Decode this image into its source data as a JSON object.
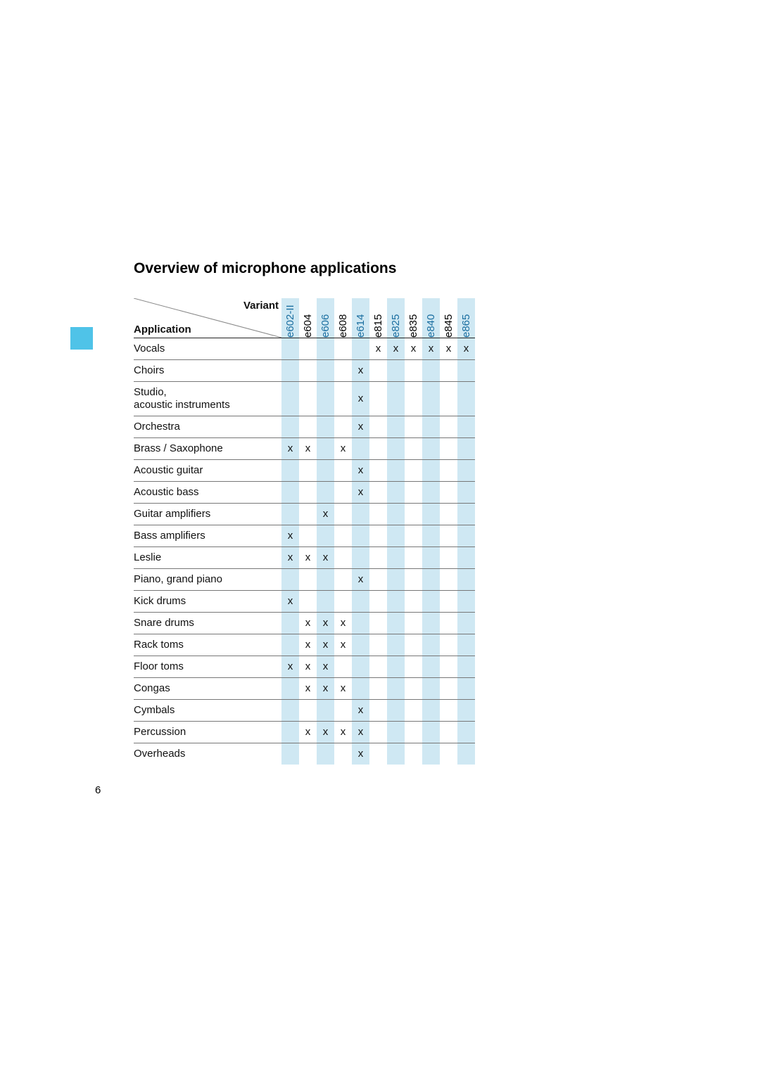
{
  "title": "Overview of microphone applications",
  "header": {
    "variant_label": "Variant",
    "application_label": "Application"
  },
  "columns": [
    "e602-II",
    "e604",
    "e606",
    "e608",
    "e614",
    "e815",
    "e825",
    "e835",
    "e840",
    "e845",
    "e865"
  ],
  "col_colors": [
    "#cfe8f3",
    "#ffffff",
    "#cfe8f3",
    "#ffffff",
    "#cfe8f3",
    "#ffffff",
    "#cfe8f3",
    "#ffffff",
    "#cfe8f3",
    "#ffffff",
    "#cfe8f3"
  ],
  "header_text_colors": [
    "#1a6ea0",
    "#000000",
    "#1a6ea0",
    "#000000",
    "#1a6ea0",
    "#000000",
    "#1a6ea0",
    "#000000",
    "#1a6ea0",
    "#000000",
    "#1a6ea0"
  ],
  "rows": [
    {
      "label": "Vocals",
      "marks": [
        "",
        "",
        "",
        "",
        "",
        "x",
        "x",
        "x",
        "x",
        "x",
        "x"
      ]
    },
    {
      "label": "Choirs",
      "marks": [
        "",
        "",
        "",
        "",
        "x",
        "",
        "",
        "",
        "",
        "",
        ""
      ]
    },
    {
      "label": "Studio,\nacoustic instruments",
      "marks": [
        "",
        "",
        "",
        "",
        "x",
        "",
        "",
        "",
        "",
        "",
        ""
      ]
    },
    {
      "label": "Orchestra",
      "marks": [
        "",
        "",
        "",
        "",
        "x",
        "",
        "",
        "",
        "",
        "",
        ""
      ]
    },
    {
      "label": "Brass / Saxophone",
      "marks": [
        "x",
        "x",
        "",
        "x",
        "",
        "",
        "",
        "",
        "",
        "",
        ""
      ]
    },
    {
      "label": "Acoustic guitar",
      "marks": [
        "",
        "",
        "",
        "",
        "x",
        "",
        "",
        "",
        "",
        "",
        ""
      ]
    },
    {
      "label": "Acoustic bass",
      "marks": [
        "",
        "",
        "",
        "",
        "x",
        "",
        "",
        "",
        "",
        "",
        ""
      ]
    },
    {
      "label": "Guitar amplifiers",
      "marks": [
        "",
        "",
        "x",
        "",
        "",
        "",
        "",
        "",
        "",
        "",
        ""
      ]
    },
    {
      "label": "Bass amplifiers",
      "marks": [
        "x",
        "",
        "",
        "",
        "",
        "",
        "",
        "",
        "",
        "",
        ""
      ]
    },
    {
      "label": "Leslie",
      "marks": [
        "x",
        "x",
        "x",
        "",
        "",
        "",
        "",
        "",
        "",
        "",
        ""
      ]
    },
    {
      "label": "Piano, grand piano",
      "marks": [
        "",
        "",
        "",
        "",
        "x",
        "",
        "",
        "",
        "",
        "",
        ""
      ]
    },
    {
      "label": "Kick drums",
      "marks": [
        "x",
        "",
        "",
        "",
        "",
        "",
        "",
        "",
        "",
        "",
        ""
      ]
    },
    {
      "label": "Snare drums",
      "marks": [
        "",
        "x",
        "x",
        "x",
        "",
        "",
        "",
        "",
        "",
        "",
        ""
      ]
    },
    {
      "label": "Rack toms",
      "marks": [
        "",
        "x",
        "x",
        "x",
        "",
        "",
        "",
        "",
        "",
        "",
        ""
      ]
    },
    {
      "label": "Floor toms",
      "marks": [
        "x",
        "x",
        "x",
        "",
        "",
        "",
        "",
        "",
        "",
        "",
        ""
      ]
    },
    {
      "label": "Congas",
      "marks": [
        "",
        "x",
        "x",
        "x",
        "",
        "",
        "",
        "",
        "",
        "",
        ""
      ]
    },
    {
      "label": "Cymbals",
      "marks": [
        "",
        "",
        "",
        "",
        "x",
        "",
        "",
        "",
        "",
        "",
        ""
      ]
    },
    {
      "label": "Percussion",
      "marks": [
        "",
        "x",
        "x",
        "x",
        "x",
        "",
        "",
        "",
        "",
        "",
        ""
      ]
    },
    {
      "label": "Overheads",
      "marks": [
        "",
        "",
        "",
        "",
        "x",
        "",
        "",
        "",
        "",
        "",
        ""
      ]
    }
  ],
  "side_marker_color": "#4fc3e8",
  "page_number": "6"
}
